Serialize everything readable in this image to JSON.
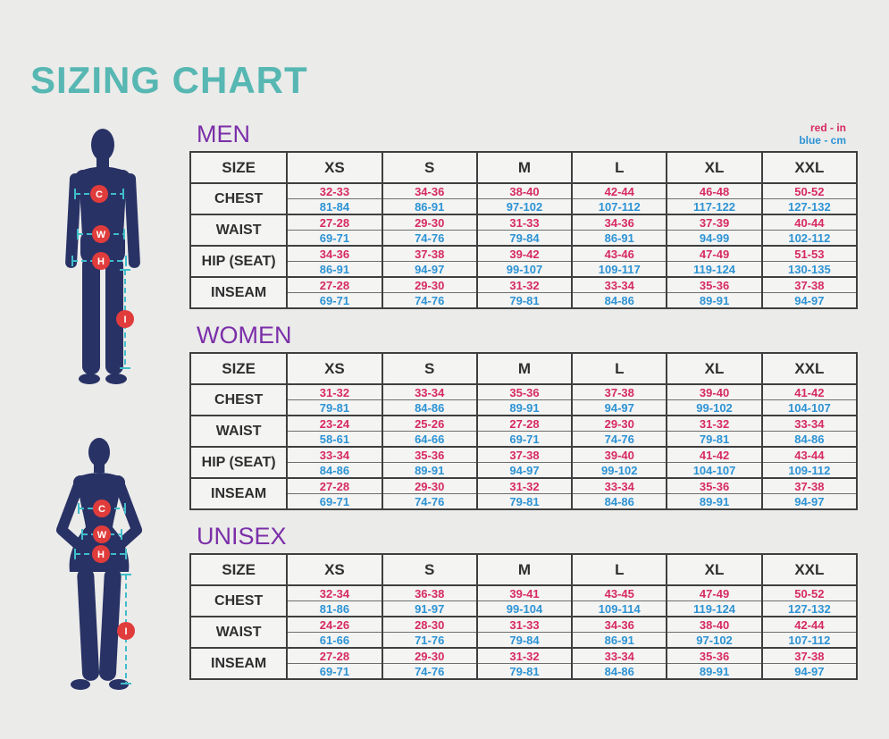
{
  "title": "SIZING CHART",
  "legend": {
    "red": "red - in",
    "blue": "blue - cm"
  },
  "colors": {
    "title_teal": "#57b7b2",
    "heading_purple": "#7b2fa8",
    "inches_red": "#d62a63",
    "cm_blue": "#2d93d4",
    "marker_red": "#e03c3c",
    "silhouette_navy": "#293265",
    "dash_teal": "#3fbdc9",
    "background": "#ebebea"
  },
  "figures": {
    "male": {
      "markers": [
        "C",
        "W",
        "H",
        "I"
      ]
    },
    "female": {
      "markers": [
        "C",
        "W",
        "H",
        "I"
      ]
    }
  },
  "tables": [
    {
      "id": "men",
      "heading": "MEN",
      "size_header": "SIZE",
      "sizes": [
        "XS",
        "S",
        "M",
        "L",
        "XL",
        "XXL"
      ],
      "rows": [
        {
          "label": "CHEST",
          "in": [
            "32-33",
            "34-36",
            "38-40",
            "42-44",
            "46-48",
            "50-52"
          ],
          "cm": [
            "81-84",
            "86-91",
            "97-102",
            "107-112",
            "117-122",
            "127-132"
          ]
        },
        {
          "label": "WAIST",
          "in": [
            "27-28",
            "29-30",
            "31-33",
            "34-36",
            "37-39",
            "40-44"
          ],
          "cm": [
            "69-71",
            "74-76",
            "79-84",
            "86-91",
            "94-99",
            "102-112"
          ]
        },
        {
          "label": "HIP (SEAT)",
          "in": [
            "34-36",
            "37-38",
            "39-42",
            "43-46",
            "47-49",
            "51-53"
          ],
          "cm": [
            "86-91",
            "94-97",
            "99-107",
            "109-117",
            "119-124",
            "130-135"
          ]
        },
        {
          "label": "INSEAM",
          "in": [
            "27-28",
            "29-30",
            "31-32",
            "33-34",
            "35-36",
            "37-38"
          ],
          "cm": [
            "69-71",
            "74-76",
            "79-81",
            "84-86",
            "89-91",
            "94-97"
          ]
        }
      ]
    },
    {
      "id": "women",
      "heading": "WOMEN",
      "size_header": "SIZE",
      "sizes": [
        "XS",
        "S",
        "M",
        "L",
        "XL",
        "XXL"
      ],
      "rows": [
        {
          "label": "CHEST",
          "in": [
            "31-32",
            "33-34",
            "35-36",
            "37-38",
            "39-40",
            "41-42"
          ],
          "cm": [
            "79-81",
            "84-86",
            "89-91",
            "94-97",
            "99-102",
            "104-107"
          ]
        },
        {
          "label": "WAIST",
          "in": [
            "23-24",
            "25-26",
            "27-28",
            "29-30",
            "31-32",
            "33-34"
          ],
          "cm": [
            "58-61",
            "64-66",
            "69-71",
            "74-76",
            "79-81",
            "84-86"
          ]
        },
        {
          "label": "HIP (SEAT)",
          "in": [
            "33-34",
            "35-36",
            "37-38",
            "39-40",
            "41-42",
            "43-44"
          ],
          "cm": [
            "84-86",
            "89-91",
            "94-97",
            "99-102",
            "104-107",
            "109-112"
          ]
        },
        {
          "label": "INSEAM",
          "in": [
            "27-28",
            "29-30",
            "31-32",
            "33-34",
            "35-36",
            "37-38"
          ],
          "cm": [
            "69-71",
            "74-76",
            "79-81",
            "84-86",
            "89-91",
            "94-97"
          ]
        }
      ]
    },
    {
      "id": "unisex",
      "heading": "UNISEX",
      "size_header": "SIZE",
      "sizes": [
        "XS",
        "S",
        "M",
        "L",
        "XL",
        "XXL"
      ],
      "rows": [
        {
          "label": "CHEST",
          "in": [
            "32-34",
            "36-38",
            "39-41",
            "43-45",
            "47-49",
            "50-52"
          ],
          "cm": [
            "81-86",
            "91-97",
            "99-104",
            "109-114",
            "119-124",
            "127-132"
          ]
        },
        {
          "label": "WAIST",
          "in": [
            "24-26",
            "28-30",
            "31-33",
            "34-36",
            "38-40",
            "42-44"
          ],
          "cm": [
            "61-66",
            "71-76",
            "79-84",
            "86-91",
            "97-102",
            "107-112"
          ]
        },
        {
          "label": "INSEAM",
          "in": [
            "27-28",
            "29-30",
            "31-32",
            "33-34",
            "35-36",
            "37-38"
          ],
          "cm": [
            "69-71",
            "74-76",
            "79-81",
            "84-86",
            "89-91",
            "94-97"
          ]
        }
      ]
    }
  ]
}
